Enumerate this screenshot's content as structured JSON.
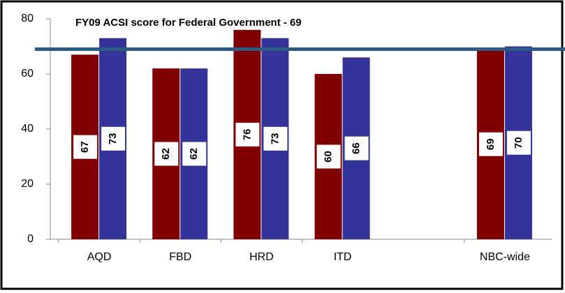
{
  "chart_data": {
    "type": "bar",
    "annotation": "FY09 ACSI score for Federal Government - 69",
    "reference_line": 69,
    "reference_color": "#2e5b86",
    "categories": [
      "AQD",
      "FBD",
      "HRD",
      "ITD",
      null,
      "NBC-wide"
    ],
    "series": [
      {
        "color": "#800000",
        "values": [
          67,
          62,
          76,
          60,
          null,
          69
        ]
      },
      {
        "color": "#333399",
        "values": [
          73,
          62,
          73,
          66,
          null,
          70
        ]
      }
    ],
    "ylim": [
      0,
      80
    ],
    "yticks": [
      0,
      20,
      40,
      60,
      80
    ],
    "grid": false
  }
}
